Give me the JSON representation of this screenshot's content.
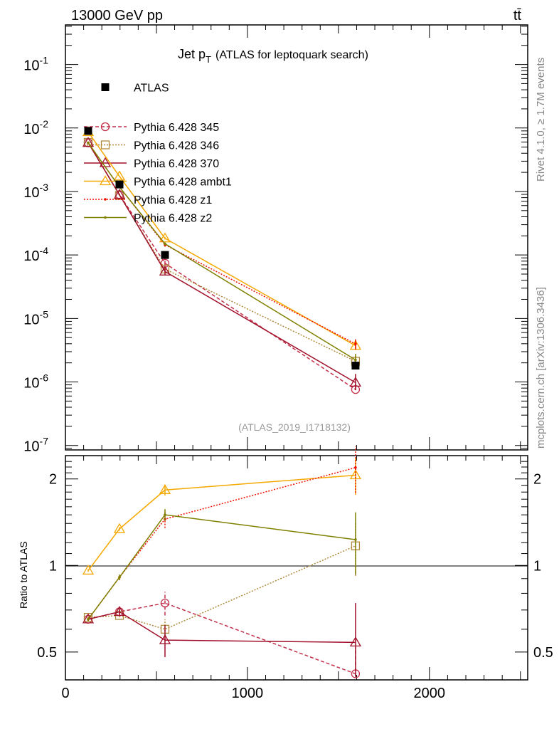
{
  "header": {
    "left": "13000 GeV pp",
    "right": "tt̄"
  },
  "side": {
    "rivet": "Rivet 4.1.0, ≥ 1.7M events",
    "mcplots": "mcplots.cern.ch [arXiv:1306.3436]"
  },
  "analysis_id": "(ATLAS_2019_I1718132)",
  "chart_data": {
    "type": "line",
    "title_main": "Jet p",
    "title_sub": "T",
    "title_rest": "(ATLAS for leptoquark search)",
    "x": [
      125,
      297,
      547,
      1594
    ],
    "xlim": [
      0,
      2540
    ],
    "xticks": [
      "0",
      "1000",
      "2000"
    ],
    "xtick_values": [
      0,
      1000,
      2000
    ],
    "ylim_top": [
      8.5e-08,
      0.42
    ],
    "yticks_top": [
      {
        "label": "10",
        "exp": "-1",
        "v": 0.1
      },
      {
        "label": "10",
        "exp": "-2",
        "v": 0.01
      },
      {
        "label": "10",
        "exp": "-3",
        "v": 0.001
      },
      {
        "label": "10",
        "exp": "-4",
        "v": 0.0001
      },
      {
        "label": "10",
        "exp": "-5",
        "v": 1e-05
      },
      {
        "label": "10",
        "exp": "-6",
        "v": 1e-06
      },
      {
        "label": "10",
        "exp": "-7",
        "v": 1e-07
      }
    ],
    "ratio_ylabel": "Ratio to ATLAS",
    "ylim_ratio": [
      0.4,
      2.41
    ],
    "yticks_ratio": [
      {
        "label": "2",
        "v": 2
      },
      {
        "label": "1",
        "v": 1
      },
      {
        "label": "0.5",
        "v": 0.5
      }
    ],
    "data": {
      "name": "ATLAS",
      "values": [
        0.009,
        0.00129,
        0.0001,
        1.81e-06
      ]
    },
    "series": [
      {
        "name": "Pythia 6.428 345",
        "color": "#c2304c",
        "dash": "5,3",
        "marker": "circle",
        "ratio": [
          0.65,
          0.69,
          0.74,
          0.42
        ],
        "err": [
          0.01,
          0.01,
          0.07,
          0.1
        ]
      },
      {
        "name": "Pythia 6.428 346",
        "color": "#b08a3c",
        "dash": "2,2",
        "marker": "square",
        "ratio": [
          0.66,
          0.67,
          0.6,
          1.17
        ],
        "err": [
          0.01,
          0.01,
          0.05,
          0.25
        ]
      },
      {
        "name": "Pythia 6.428 370",
        "color": "#a0102a",
        "dash": "",
        "marker": "triangle",
        "ratio": [
          0.65,
          0.69,
          0.55,
          0.54
        ],
        "err": [
          0.01,
          0.02,
          0.07,
          0.2
        ]
      },
      {
        "name": "Pythia 6.428 ambt1",
        "color": "#f5a800",
        "dash": "",
        "marker": "triangle",
        "ratio": [
          0.96,
          1.34,
          1.83,
          2.06
        ],
        "err": [
          0.01,
          0.02,
          0.08,
          0.3
        ]
      },
      {
        "name": "Pythia 6.428 z1",
        "color": "#ee1100",
        "dash": "2,2",
        "marker": "dot",
        "ratio": [
          0.65,
          0.91,
          1.45,
          2.19
        ],
        "err": [
          0.01,
          0.02,
          0.1,
          0.4
        ]
      },
      {
        "name": "Pythia 6.428 z2",
        "color": "#808000",
        "dash": "",
        "marker": "dot",
        "ratio": [
          0.65,
          0.91,
          1.5,
          1.23
        ],
        "err": [
          0.01,
          0.02,
          0.07,
          0.3
        ]
      }
    ]
  }
}
